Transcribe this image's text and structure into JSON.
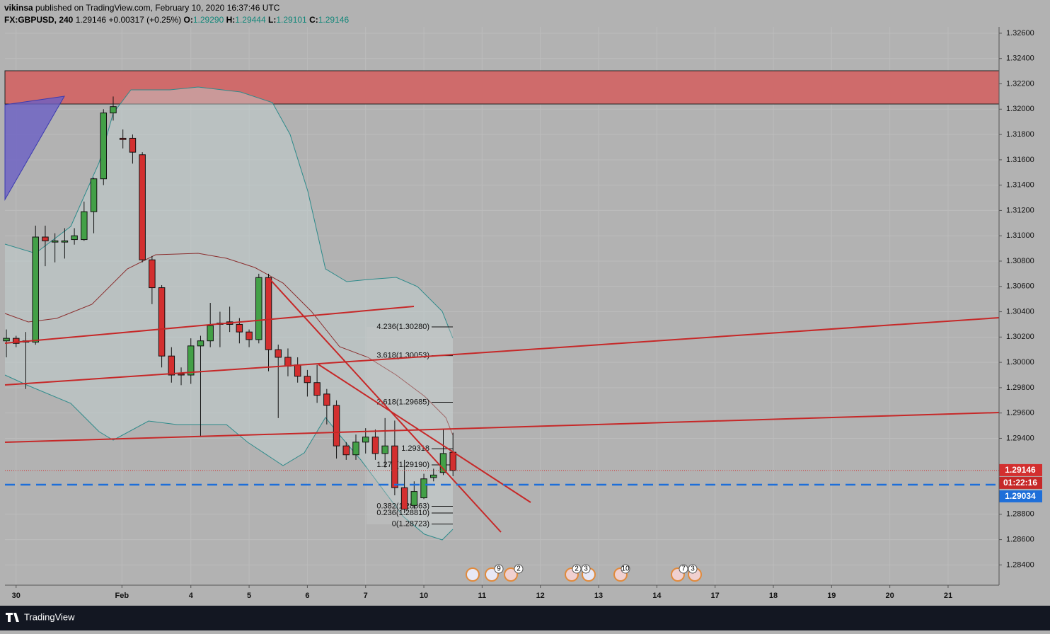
{
  "header": {
    "author": "vikinsa",
    "published": "published on TradingView.com, February 10, 2020 16:37:46 UTC",
    "symbol": "FX:GBPUSD, 240",
    "price": "1.29146",
    "change": "+0.00317 (+0.25%)",
    "o_label": "O:",
    "open": "1.29290",
    "h_label": "H:",
    "high": "1.29444",
    "l_label": "L:",
    "low": "1.29101",
    "c_label": "C:",
    "close": "1.29146"
  },
  "footer": {
    "brand": "TradingView"
  },
  "events": [
    9,
    2,
    2,
    3,
    10,
    7,
    3
  ],
  "chart_data": {
    "type": "candlestick",
    "up_color": "#43a047",
    "down_color": "#d32f2f",
    "grid": true,
    "x": [
      0,
      1,
      2,
      3,
      4,
      5,
      6,
      7,
      8,
      9,
      10,
      11,
      12,
      13,
      14,
      15,
      16,
      17,
      18,
      19,
      20,
      21,
      22,
      23,
      24,
      25,
      26,
      27,
      28,
      29,
      30,
      31,
      32,
      33,
      34,
      35,
      36,
      37,
      38,
      39,
      40,
      41,
      42,
      43,
      44,
      45,
      46
    ],
    "open": [
      1.3017,
      1.3019,
      1.3016,
      1.3016,
      1.3099,
      1.3095,
      1.3095,
      1.3097,
      1.3097,
      1.3119,
      1.3145,
      1.3197,
      1.3177,
      1.3177,
      1.3164,
      1.3081,
      1.3059,
      1.3005,
      1.2991,
      1.299,
      1.3013,
      1.3017,
      1.303,
      1.3032,
      1.303,
      1.3024,
      1.3018,
      1.3067,
      1.301,
      1.3004,
      1.2998,
      1.2989,
      1.2984,
      1.2975,
      1.2966,
      1.2934,
      1.2927,
      1.2937,
      1.2941,
      1.2928,
      1.2934,
      1.2901,
      1.2887,
      1.2893,
      1.2909,
      1.2913,
      1.2929
    ],
    "high": [
      1.3026,
      1.3021,
      1.3024,
      1.3108,
      1.3108,
      1.3102,
      1.3106,
      1.3106,
      1.3127,
      1.3146,
      1.32,
      1.321,
      1.3184,
      1.318,
      1.3166,
      1.3084,
      1.3061,
      1.3012,
      1.2996,
      1.3019,
      1.3021,
      1.3047,
      1.304,
      1.3044,
      1.3035,
      1.3026,
      1.307,
      1.307,
      1.3014,
      1.3011,
      1.3004,
      1.2994,
      1.2998,
      1.2979,
      1.297,
      1.2937,
      1.2943,
      1.2948,
      1.2947,
      1.2956,
      1.2954,
      1.2923,
      1.2906,
      1.2912,
      1.2916,
      1.2947,
      1.29444
    ],
    "low": [
      1.3004,
      1.3012,
      1.2979,
      1.3014,
      1.3076,
      1.3079,
      1.3082,
      1.3093,
      1.3096,
      1.3102,
      1.314,
      1.3191,
      1.3169,
      1.3157,
      1.3079,
      1.3046,
      1.2996,
      1.2984,
      1.2982,
      1.2983,
      1.2941,
      1.3012,
      1.3012,
      1.3024,
      1.3015,
      1.3012,
      1.3015,
      1.2993,
      1.2956,
      1.2989,
      1.2984,
      1.2973,
      1.2968,
      1.2951,
      1.2924,
      1.2923,
      1.2923,
      1.2928,
      1.2923,
      1.2917,
      1.2895,
      1.2881,
      1.2884,
      1.2892,
      1.2906,
      1.2911,
      1.29101
    ],
    "close": [
      1.3019,
      1.3015,
      1.3017,
      1.3099,
      1.3096,
      1.3096,
      1.3096,
      1.31,
      1.3119,
      1.3145,
      1.3197,
      1.3202,
      1.3176,
      1.3166,
      1.3081,
      1.3059,
      1.3005,
      1.299,
      1.299,
      1.3013,
      1.3017,
      1.3029,
      1.3031,
      1.303,
      1.3024,
      1.3018,
      1.3067,
      1.301,
      1.3004,
      1.2997,
      1.2989,
      1.2984,
      1.2974,
      1.2966,
      1.2934,
      1.2927,
      1.2937,
      1.2941,
      1.2928,
      1.2934,
      1.2901,
      1.2884,
      1.2898,
      1.2908,
      1.2911,
      1.2928,
      1.29146
    ],
    "xlim": [
      -0.15,
      102.25
    ],
    "xticks": [
      {
        "value": 1,
        "label": "30"
      },
      {
        "value": 11.9,
        "label": "Feb"
      },
      {
        "value": 19,
        "label": "4"
      },
      {
        "value": 25,
        "label": "5"
      },
      {
        "value": 31,
        "label": "6"
      },
      {
        "value": 37,
        "label": "7"
      },
      {
        "value": 43,
        "label": "10"
      },
      {
        "value": 49,
        "label": "11"
      },
      {
        "value": 55,
        "label": "12"
      },
      {
        "value": 61,
        "label": "13"
      },
      {
        "value": 67,
        "label": "14"
      },
      {
        "value": 73,
        "label": "17"
      },
      {
        "value": 79,
        "label": "18"
      },
      {
        "value": 85,
        "label": "19"
      },
      {
        "value": 91,
        "label": "20"
      },
      {
        "value": 97,
        "label": "21"
      }
    ],
    "ylim": [
      1.2824,
      1.3265
    ],
    "yticks": [
      {
        "value": 1.284,
        "label": "1.28400"
      },
      {
        "value": 1.286,
        "label": "1.28600"
      },
      {
        "value": 1.288,
        "label": "1.28800"
      },
      {
        "value": 1.294,
        "label": "1.29400"
      },
      {
        "value": 1.296,
        "label": "1.29600"
      },
      {
        "value": 1.298,
        "label": "1.29800"
      },
      {
        "value": 1.3,
        "label": "1.30000"
      },
      {
        "value": 1.302,
        "label": "1.30200"
      },
      {
        "value": 1.304,
        "label": "1.30400"
      },
      {
        "value": 1.306,
        "label": "1.30600"
      },
      {
        "value": 1.308,
        "label": "1.30800"
      },
      {
        "value": 1.31,
        "label": "1.31000"
      },
      {
        "value": 1.312,
        "label": "1.31200"
      },
      {
        "value": 1.314,
        "label": "1.31400"
      },
      {
        "value": 1.316,
        "label": "1.31600"
      },
      {
        "value": 1.318,
        "label": "1.31800"
      },
      {
        "value": 1.32,
        "label": "1.32000"
      },
      {
        "value": 1.322,
        "label": "1.32200"
      },
      {
        "value": 1.324,
        "label": "1.32400"
      },
      {
        "value": 1.326,
        "label": "1.32600"
      }
    ],
    "last_price": {
      "value": 1.29146,
      "label": "1.29146",
      "color": "#d32f2f"
    },
    "countdown": "01:22:16",
    "alert_line": {
      "value": 1.29034,
      "label": "1.29034",
      "color": "#1e6fd9"
    },
    "fib_levels": [
      {
        "value": 1.3028,
        "label": "4.236(1.30280)"
      },
      {
        "value": 1.30053,
        "label": "3.618(1.30053)"
      },
      {
        "value": 1.29685,
        "label": "2.618(1.29685)"
      },
      {
        "value": 1.29318,
        "label": "1.29318"
      },
      {
        "value": 1.2919,
        "label": "1.272(1.29190)"
      },
      {
        "value": 1.28863,
        "label": "0.382(1.28863)"
      },
      {
        "value": 1.2881,
        "label": "0.236(1.28810)"
      },
      {
        "value": 1.28723,
        "label": "0(1.28723)"
      }
    ]
  }
}
